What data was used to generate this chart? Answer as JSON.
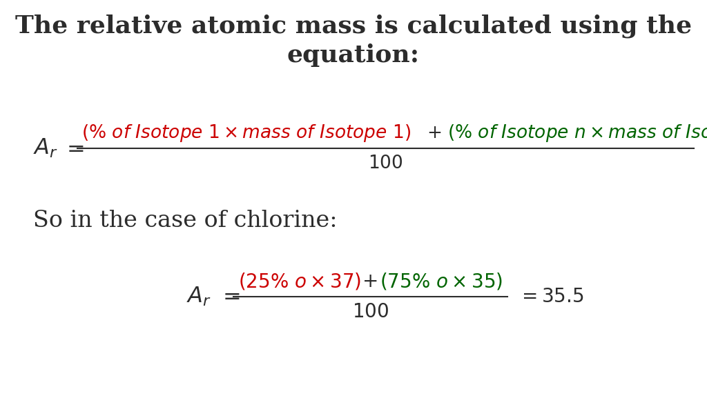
{
  "title_line1": "The relative atomic mass is calculated using the",
  "title_line2": "equation:",
  "background_color": "#ffffff",
  "text_color": "#2c2c2c",
  "red_color": "#cc0000",
  "green_color": "#006400",
  "title_fontsize": 26,
  "formula_fontsize": 20,
  "body_fontsize": 24,
  "chlorine_label": "So in the case of chlorine:"
}
